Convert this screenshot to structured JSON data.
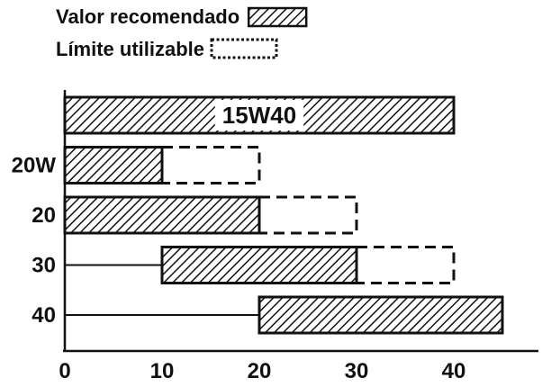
{
  "chart_data": {
    "type": "bar",
    "legend": [
      {
        "label": "Valor recomendado",
        "style": "hatched"
      },
      {
        "label": "Límite utilizable",
        "style": "dashed"
      }
    ],
    "legend_position": "top-left",
    "x_ticks": [
      0,
      10,
      20,
      30,
      40
    ],
    "xlim": [
      0,
      45
    ],
    "grid": false,
    "rows": [
      {
        "label": "",
        "recommended": [
          0,
          40
        ],
        "limit": null,
        "bar_text": "15W40"
      },
      {
        "label": "20W",
        "recommended": [
          0,
          10
        ],
        "limit": [
          10,
          20
        ],
        "bar_text": ""
      },
      {
        "label": "20",
        "recommended": [
          0,
          20
        ],
        "limit": [
          20,
          30
        ],
        "bar_text": ""
      },
      {
        "label": "30",
        "recommended": [
          10,
          30
        ],
        "limit": [
          30,
          40
        ],
        "bar_text": ""
      },
      {
        "label": "40",
        "recommended": [
          20,
          45
        ],
        "limit": null,
        "bar_text": ""
      }
    ]
  },
  "colors": {
    "ink": "#111111",
    "background": "#ffffff"
  }
}
